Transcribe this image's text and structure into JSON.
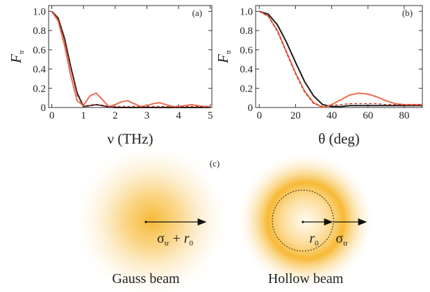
{
  "chart_data": [
    {
      "type": "line",
      "panel_label": "(a)",
      "x_label": "ν (THz)",
      "y_label": "F",
      "y_label_subscript": "tr",
      "x": [
        0,
        0.2,
        0.4,
        0.6,
        0.8,
        1.0,
        1.2,
        1.4,
        1.6,
        1.8,
        2.0,
        2.2,
        2.4,
        2.6,
        2.8,
        3.0,
        3.2,
        3.4,
        3.6,
        3.8,
        4.0,
        4.2,
        4.4,
        4.6,
        4.8,
        5.0
      ],
      "series": [
        {
          "color": "#1a1a1a",
          "style": "solid",
          "values": [
            1,
            0.93,
            0.72,
            0.42,
            0.15,
            0.01,
            0.02,
            0.03,
            0.02,
            0.005,
            0,
            0,
            0,
            0,
            0,
            0,
            0,
            0,
            0,
            0,
            0,
            0,
            0,
            0,
            0,
            0
          ]
        },
        {
          "color": "#f06a50",
          "style": "solid",
          "values": [
            1,
            0.9,
            0.65,
            0.33,
            0.07,
            0.02,
            0.12,
            0.15,
            0.08,
            0.01,
            0.03,
            0.06,
            0.07,
            0.04,
            0.01,
            0.02,
            0.04,
            0.05,
            0.03,
            0.01,
            0.01,
            0.02,
            0.03,
            0.02,
            0.01,
            0.01
          ]
        },
        {
          "color": "#c0392b",
          "style": "dashed",
          "values": [
            1,
            0.92,
            0.7,
            0.4,
            0.13,
            0.01,
            0.02,
            0.03,
            0.02,
            0.01,
            0.01,
            0.01,
            0.01,
            0.01,
            0.01,
            0.01,
            0.01,
            0.01,
            0.01,
            0.01,
            0.01,
            0.01,
            0.01,
            0.01,
            0.01,
            0.01
          ]
        }
      ],
      "xlim": [
        -0.1,
        5.05
      ],
      "xticks": [
        0,
        1,
        2,
        3,
        4,
        5
      ],
      "ylim": [
        0,
        1.06
      ],
      "yticks": [
        0,
        0.2,
        0.4,
        0.6,
        0.8,
        {
          "value": 1,
          "label": "1.0"
        }
      ]
    },
    {
      "type": "line",
      "panel_label": "(b)",
      "x_label": "θ (deg)",
      "y_label": "F",
      "y_label_subscript": "tr",
      "x": [
        0,
        5,
        10,
        15,
        20,
        25,
        30,
        35,
        40,
        45,
        50,
        55,
        60,
        65,
        70,
        75,
        80,
        85,
        90
      ],
      "series": [
        {
          "color": "#1a1a1a",
          "style": "solid",
          "values": [
            1,
            0.97,
            0.86,
            0.68,
            0.47,
            0.27,
            0.12,
            0.03,
            0.01,
            0.01,
            0.02,
            0.02,
            0.02,
            0.02,
            0.02,
            0.02,
            0.02,
            0.02,
            0.02
          ]
        },
        {
          "color": "#f06a50",
          "style": "solid",
          "values": [
            1,
            0.95,
            0.8,
            0.58,
            0.36,
            0.17,
            0.05,
            0,
            0.03,
            0.08,
            0.13,
            0.15,
            0.14,
            0.11,
            0.07,
            0.04,
            0.03,
            0.03,
            0.03
          ]
        },
        {
          "color": "#c0392b",
          "style": "dashed",
          "values": [
            1,
            0.95,
            0.79,
            0.57,
            0.35,
            0.16,
            0.04,
            0.01,
            0.02,
            0.03,
            0.04,
            0.04,
            0.04,
            0.04,
            0.03,
            0.03,
            0.03,
            0.03,
            0.03
          ]
        }
      ],
      "xlim": [
        -2,
        90
      ],
      "xticks": [
        0,
        20,
        40,
        60,
        80
      ],
      "ylim": [
        0,
        1.06
      ],
      "yticks": [
        0,
        0.2,
        0.4,
        0.6,
        0.8,
        {
          "value": 1,
          "label": "1.0"
        }
      ]
    }
  ],
  "diagram": {
    "panel_label": "(c)",
    "gauss": {
      "label": "Gauss beam",
      "arrow_label_parts": [
        "σ",
        "tr",
        " + ",
        "r",
        "0"
      ]
    },
    "hollow": {
      "label": "Hollow beam",
      "inner_label_parts": [
        "r",
        "0"
      ],
      "outer_label_parts": [
        "σ",
        "tr"
      ]
    }
  }
}
